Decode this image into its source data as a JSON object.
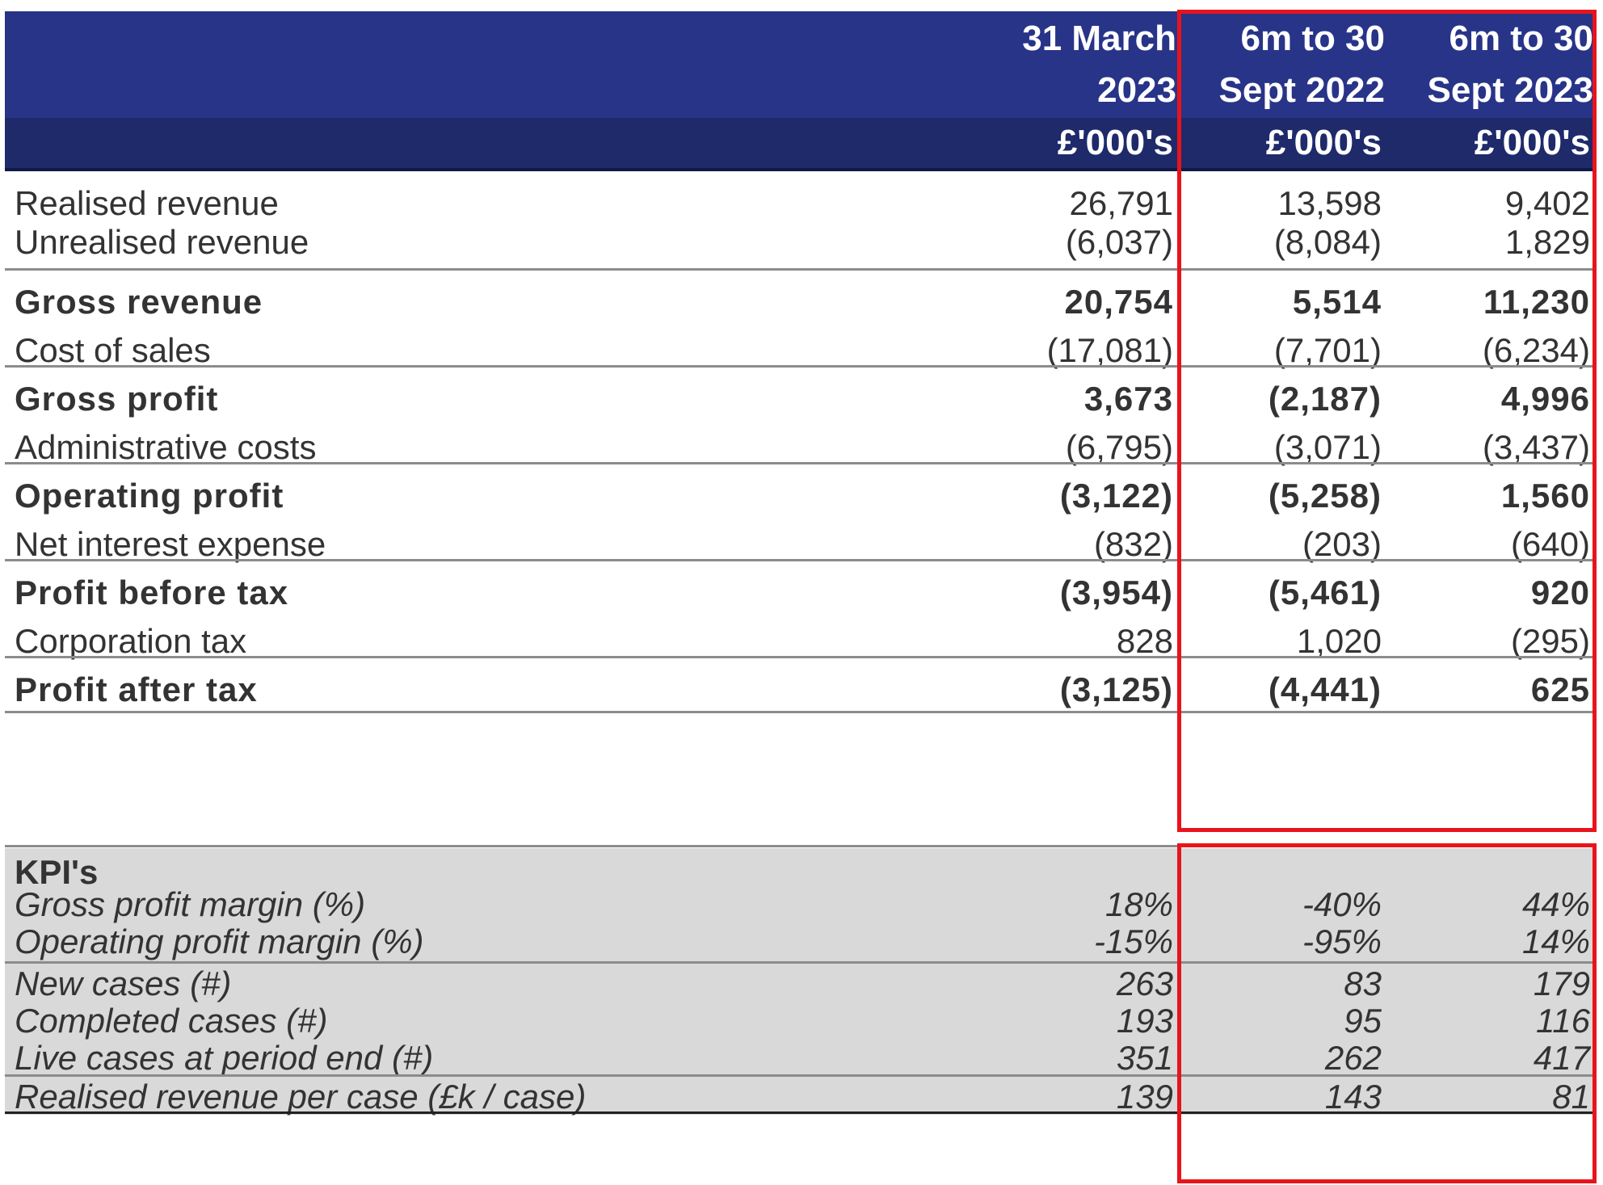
{
  "columns": [
    {
      "line1": "31 March",
      "line2": "2023",
      "unit": "£'000's"
    },
    {
      "line1": "6m to 30",
      "line2": "Sept 2022",
      "unit": "£'000's"
    },
    {
      "line1": "6m to 30",
      "line2": "Sept 2023",
      "unit": "£'000's"
    }
  ],
  "rows": [
    {
      "label": "Realised revenue",
      "values": [
        "26,791",
        "13,598",
        "9,402"
      ],
      "bold": false
    },
    {
      "label": "Unrealised revenue",
      "values": [
        "(6,037)",
        "(8,084)",
        "1,829"
      ],
      "bold": false
    },
    {
      "label": "Gross revenue",
      "values": [
        "20,754",
        "5,514",
        "11,230"
      ],
      "bold": true
    },
    {
      "label": "Cost of sales",
      "values": [
        "(17,081)",
        "(7,701)",
        "(6,234)"
      ],
      "bold": false
    },
    {
      "label": "Gross profit",
      "values": [
        "3,673",
        "(2,187)",
        "4,996"
      ],
      "bold": true
    },
    {
      "label": "Administrative costs",
      "values": [
        "(6,795)",
        "(3,071)",
        "(3,437)"
      ],
      "bold": false
    },
    {
      "label": "Operating profit",
      "values": [
        "(3,122)",
        "(5,258)",
        "1,560"
      ],
      "bold": true
    },
    {
      "label": "Net interest expense",
      "values": [
        "(832)",
        "(203)",
        "(640)"
      ],
      "bold": false
    },
    {
      "label": "Profit before tax",
      "values": [
        "(3,954)",
        "(5,461)",
        "920"
      ],
      "bold": true
    },
    {
      "label": "Corporation tax",
      "values": [
        "828",
        "1,020",
        "(295)"
      ],
      "bold": false
    },
    {
      "label": "Profit after tax",
      "values": [
        "(3,125)",
        "(4,441)",
        "625"
      ],
      "bold": true
    }
  ],
  "kpi": {
    "title": "KPI's",
    "rows": [
      {
        "label": "Gross profit margin (%)",
        "values": [
          "18%",
          "-40%",
          "44%"
        ]
      },
      {
        "label": "Operating profit margin (%)",
        "values": [
          "-15%",
          "-95%",
          "14%"
        ]
      },
      {
        "label": "New cases (#)",
        "values": [
          "263",
          "83",
          "179"
        ]
      },
      {
        "label": "Completed cases (#)",
        "values": [
          "193",
          "95",
          "116"
        ]
      },
      {
        "label": "Live cases at period end (#)",
        "values": [
          "351",
          "262",
          "417"
        ]
      },
      {
        "label": "Realised revenue per case (£k / case)",
        "values": [
          "139",
          "143",
          "81"
        ]
      }
    ]
  },
  "colors": {
    "header": "#283488",
    "header_sub": "#1f2a6b",
    "highlight": "#e8141b",
    "kpi_bg": "#d9d9d9"
  }
}
